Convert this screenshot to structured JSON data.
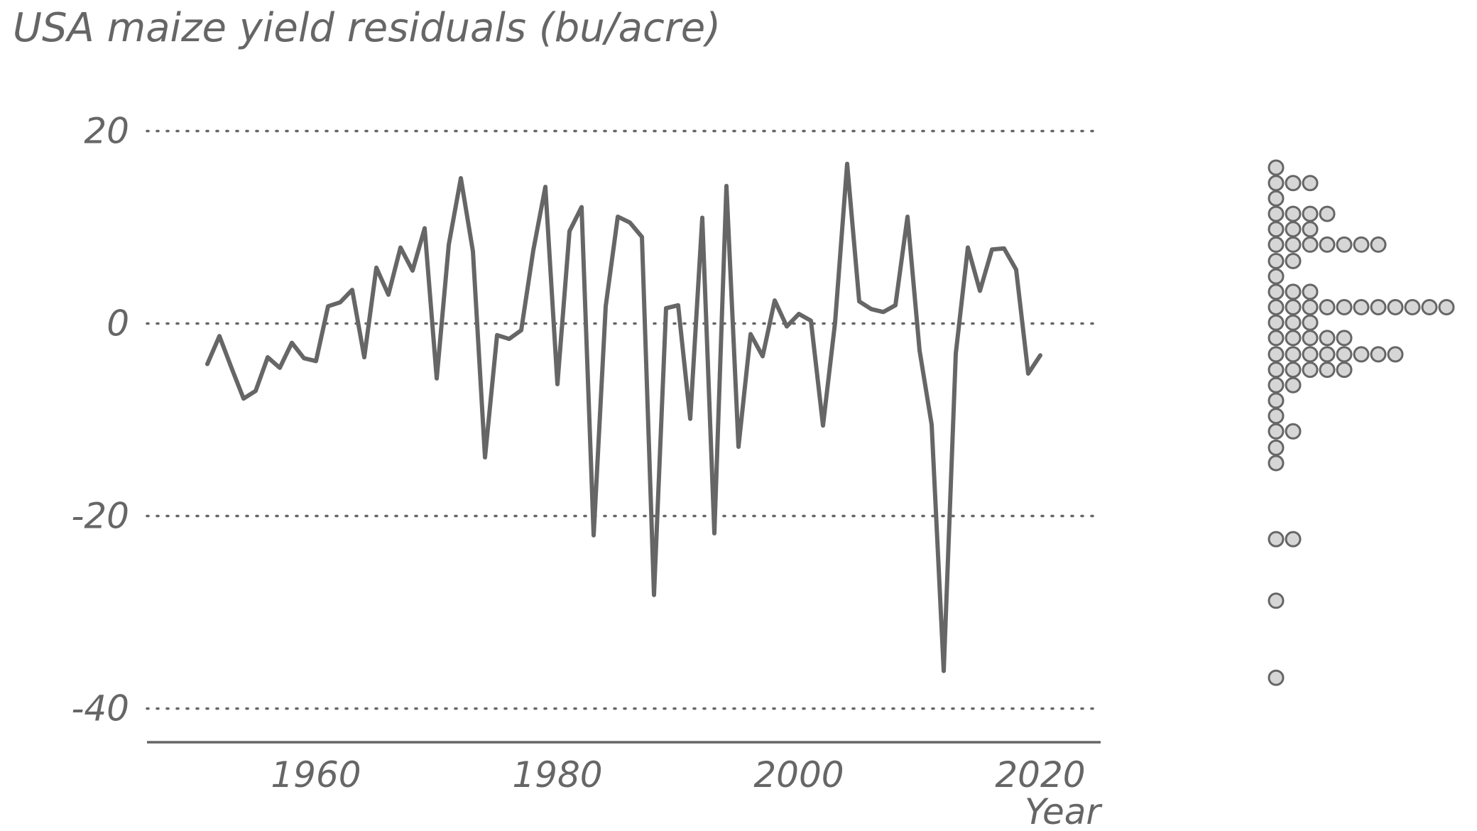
{
  "chart_data": {
    "type": "line",
    "title": "USA maize yield residuals (bu/acre)",
    "xlabel": "Year",
    "ylabel": "",
    "xlim": [
      1946,
      2025
    ],
    "ylim": [
      -43.5,
      25.5
    ],
    "x_ticks": [
      1960,
      1980,
      2000,
      2020
    ],
    "x_tick_labels": [
      "1960",
      "1980",
      "2000",
      "2020"
    ],
    "y_ticks": [
      -40,
      -20,
      0,
      20
    ],
    "y_tick_labels": [
      "-40",
      "-20",
      "0",
      "20"
    ],
    "grid": "horizontal dotted lines at y ticks",
    "legend": "none",
    "series": [
      {
        "x": [
          1951,
          1952,
          1953,
          1954,
          1955,
          1956,
          1957,
          1958,
          1959,
          1960,
          1961,
          1962,
          1963,
          1964,
          1965,
          1966,
          1967,
          1968,
          1969,
          1970,
          1971,
          1972,
          1973,
          1974,
          1975,
          1976,
          1977,
          1978,
          1979,
          1980,
          1981,
          1982,
          1983,
          1984,
          1985,
          1986,
          1987,
          1988,
          1989,
          1990,
          1991,
          1992,
          1993,
          1994,
          1995,
          1996,
          1997,
          1998,
          1999,
          2000,
          2001,
          2002,
          2003,
          2004,
          2005,
          2006,
          2007,
          2008,
          2009,
          2010,
          2011,
          2012,
          2013,
          2014,
          2015,
          2016,
          2017,
          2018,
          2019,
          2020
        ],
        "y": [
          -4.2,
          -1.3,
          -4.6,
          -7.8,
          -7,
          -3.5,
          -4.6,
          -2,
          -3.6,
          -3.9,
          1.8,
          2.2,
          3.5,
          -3.5,
          5.8,
          3,
          7.9,
          5.5,
          9.9,
          -5.7,
          8.2,
          15.1,
          7.5,
          -13.9,
          -1.2,
          -1.6,
          -0.7,
          7.6,
          14.2,
          -6.3,
          9.6,
          12.1,
          -22,
          1.8,
          11.1,
          10.5,
          9,
          -28.2,
          1.6,
          1.9,
          -9.9,
          11,
          -21.8,
          14.3,
          -12.8,
          -1.1,
          -3.4,
          2.4,
          -0.3,
          1,
          0.3,
          -10.6,
          0.1,
          16.6,
          2.3,
          1.5,
          1.2,
          1.9,
          11.1,
          -2.8,
          -10.5,
          -36.1,
          -3.1,
          7.9,
          3.4,
          7.7,
          7.8,
          5.6,
          -5.2,
          -3.3
        ]
      }
    ],
    "side_dotplot": {
      "description": "histogram dotplot of residual values on right margin",
      "bins": [
        {
          "value": 16.2,
          "count": 1
        },
        {
          "value": 14.6,
          "count": 3
        },
        {
          "value": 13,
          "count": 1
        },
        {
          "value": 11.4,
          "count": 4
        },
        {
          "value": 9.8,
          "count": 3
        },
        {
          "value": 8.2,
          "count": 7
        },
        {
          "value": 6.5,
          "count": 2
        },
        {
          "value": 4.9,
          "count": 1
        },
        {
          "value": 3.3,
          "count": 3
        },
        {
          "value": 1.7,
          "count": 11
        },
        {
          "value": 0.1,
          "count": 3
        },
        {
          "value": -1.5,
          "count": 5
        },
        {
          "value": -3.2,
          "count": 8
        },
        {
          "value": -4.8,
          "count": 5
        },
        {
          "value": -6.4,
          "count": 2
        },
        {
          "value": -8,
          "count": 1
        },
        {
          "value": -9.6,
          "count": 1
        },
        {
          "value": -11.2,
          "count": 2
        },
        {
          "value": -12.9,
          "count": 1
        },
        {
          "value": -14.5,
          "count": 1
        },
        {
          "value": -22.4,
          "count": 2
        },
        {
          "value": -28.8,
          "count": 1
        },
        {
          "value": -36.8,
          "count": 1
        }
      ]
    },
    "colors": {
      "line": "#666666",
      "dot_fill": "#d6d6d6",
      "dot_stroke": "#666666",
      "text": "#666666"
    }
  }
}
